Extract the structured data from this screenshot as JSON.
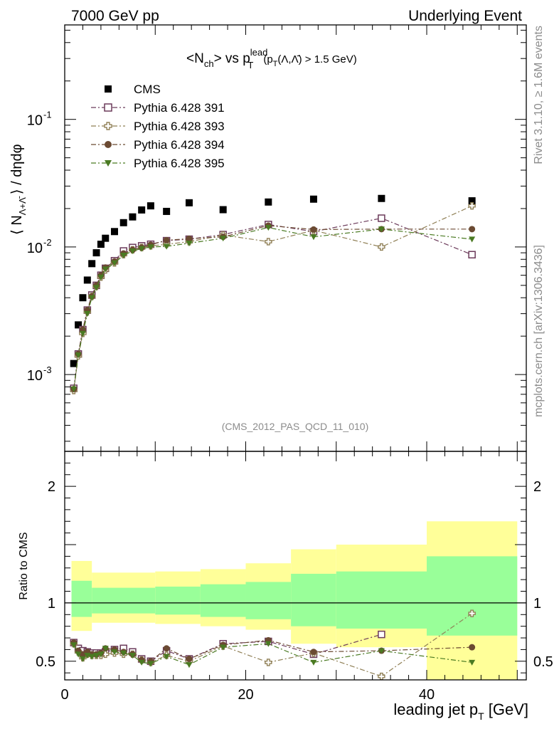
{
  "header": {
    "left": "7000 GeV pp",
    "right": "Underlying Event"
  },
  "side_labels": {
    "rivet": "Rivet 3.1.10, ≥ 1.6M events",
    "mcplots": "mcplots.cern.ch [arXiv:1306.3436]"
  },
  "chart_data": [
    {
      "type": "scatter",
      "title": "<N_ch> vs p_T^lead (p_T(Λ,Λ̄) > 1.5 GeV)",
      "title_parts": {
        "a": "<N",
        "a_sub": "ch",
        "b": "> vs p",
        "b_sup": "lead",
        "b_sub": "T",
        "c": "(p",
        "c_sub": "T",
        "d": "(Λ,Λ̄) > 1.5 GeV)"
      },
      "ylabel": "⟨ N_Λ+Λ̄ ⟩ / dηdφ",
      "ylabel_parts": {
        "open": "⟨ N",
        "sub": "Λ+Λ̄",
        "close": "⟩ / dηdφ"
      },
      "watermark": "(CMS_2012_PAS_QCD_11_010)",
      "yscale": "log",
      "xlim": [
        0,
        51
      ],
      "ylim": [
        0.00025,
        0.55
      ],
      "y_tick_labels": [
        "10",
        "10",
        "10"
      ],
      "y_tick_exponents": [
        "-3",
        "-2",
        "-1"
      ],
      "legend_position": "top-left",
      "series": [
        {
          "name": "CMS",
          "marker": "filled-square",
          "color": "#000000",
          "x": [
            1,
            1.5,
            2,
            2.5,
            3,
            3.5,
            4,
            4.5,
            5.5,
            6.5,
            7.5,
            8.5,
            9.5,
            11.25,
            13.75,
            17.5,
            22.5,
            27.5,
            35,
            45
          ],
          "y": [
            0.00122,
            0.00245,
            0.004,
            0.0055,
            0.0074,
            0.009,
            0.0105,
            0.0117,
            0.0132,
            0.0155,
            0.0172,
            0.0195,
            0.021,
            0.019,
            0.0222,
            0.0196,
            0.0225,
            0.0237,
            0.024,
            0.023
          ]
        },
        {
          "name": "Pythia 6.428 391",
          "marker": "open-square",
          "color": "#6b3a5a",
          "x": [
            1,
            1.5,
            2,
            2.5,
            3,
            3.5,
            4,
            4.5,
            5.5,
            6.5,
            7.5,
            8.5,
            9.5,
            11.25,
            13.75,
            17.5,
            22.5,
            27.5,
            35,
            45
          ],
          "y": [
            0.00078,
            0.00145,
            0.00225,
            0.0032,
            0.0042,
            0.005,
            0.006,
            0.0068,
            0.0078,
            0.0093,
            0.0099,
            0.0102,
            0.0105,
            0.0112,
            0.0115,
            0.0125,
            0.015,
            0.0132,
            0.0168,
            0.0087
          ]
        },
        {
          "name": "Pythia 6.428 393",
          "marker": "open-cross",
          "color": "#8f7f55",
          "x": [
            1,
            1.5,
            2,
            2.5,
            3,
            3.5,
            4,
            4.5,
            5.5,
            6.5,
            7.5,
            8.5,
            9.5,
            11.25,
            13.75,
            17.5,
            22.5,
            27.5,
            35,
            45
          ],
          "y": [
            0.00075,
            0.0014,
            0.0021,
            0.0031,
            0.0041,
            0.0049,
            0.0058,
            0.0066,
            0.0075,
            0.0087,
            0.0095,
            0.0099,
            0.0102,
            0.0105,
            0.011,
            0.0124,
            0.011,
            0.0135,
            0.01,
            0.021
          ]
        },
        {
          "name": "Pythia 6.428 394",
          "marker": "filled-circle",
          "color": "#6b4a32",
          "x": [
            1,
            1.5,
            2,
            2.5,
            3,
            3.5,
            4,
            4.5,
            5.5,
            6.5,
            7.5,
            8.5,
            9.5,
            11.25,
            13.75,
            17.5,
            22.5,
            27.5,
            35,
            45
          ],
          "y": [
            0.00077,
            0.00145,
            0.00225,
            0.0032,
            0.0041,
            0.005,
            0.006,
            0.0069,
            0.0077,
            0.0089,
            0.0095,
            0.0099,
            0.0104,
            0.0113,
            0.0116,
            0.012,
            0.0147,
            0.0137,
            0.0138,
            0.0138
          ]
        },
        {
          "name": "Pythia 6.428 395",
          "marker": "filled-triangle-down",
          "color": "#4a7a22",
          "x": [
            1,
            1.5,
            2,
            2.5,
            3,
            3.5,
            4,
            4.5,
            5.5,
            6.5,
            7.5,
            8.5,
            9.5,
            11.25,
            13.75,
            17.5,
            22.5,
            27.5,
            35,
            45
          ],
          "y": [
            0.00077,
            0.00142,
            0.0021,
            0.003,
            0.004,
            0.0048,
            0.0058,
            0.0067,
            0.0075,
            0.0086,
            0.0093,
            0.0097,
            0.01,
            0.0101,
            0.0107,
            0.0117,
            0.0142,
            0.012,
            0.0138,
            0.0115
          ]
        }
      ]
    },
    {
      "type": "scatter",
      "ylabel": "Ratio to CMS",
      "xlabel": "leading jet p_T [GeV]",
      "xlabel_parts": {
        "a": "leading jet p",
        "sub": "T",
        "b": " [GeV]"
      },
      "xlim": [
        0,
        51
      ],
      "ylim": [
        0.34,
        2.3
      ],
      "x_ticks": [
        0,
        20,
        40
      ],
      "x_tick_labels": [
        "0",
        "20",
        "40"
      ],
      "y_ticks": [
        0.5,
        1,
        2
      ],
      "y_tick_labels": [
        "0.5",
        "1",
        "2"
      ],
      "reference_line": 1,
      "bands": [
        {
          "x0": 0.75,
          "x1": 3,
          "green": [
            0.88,
            1.19
          ],
          "yellow": [
            0.76,
            1.36
          ]
        },
        {
          "x0": 3,
          "x1": 10,
          "green": [
            0.91,
            1.13
          ],
          "yellow": [
            0.83,
            1.26
          ]
        },
        {
          "x0": 10,
          "x1": 15,
          "green": [
            0.9,
            1.14
          ],
          "yellow": [
            0.82,
            1.27
          ]
        },
        {
          "x0": 15,
          "x1": 20,
          "green": [
            0.88,
            1.16
          ],
          "yellow": [
            0.8,
            1.29
          ]
        },
        {
          "x0": 20,
          "x1": 25,
          "green": [
            0.86,
            1.18
          ],
          "yellow": [
            0.77,
            1.34
          ]
        },
        {
          "x0": 25,
          "x1": 30,
          "green": [
            0.8,
            1.25
          ],
          "yellow": [
            0.65,
            1.46
          ]
        },
        {
          "x0": 30,
          "x1": 40,
          "green": [
            0.78,
            1.27
          ],
          "yellow": [
            0.62,
            1.5
          ]
        },
        {
          "x0": 40,
          "x1": 50,
          "green": [
            0.72,
            1.4
          ],
          "yellow": [
            0.34,
            1.7
          ]
        }
      ],
      "series": [
        {
          "name": "Pythia 6.428 391",
          "marker": "open-square",
          "color": "#6b3a5a",
          "x": [
            1,
            1.5,
            2,
            2.5,
            3,
            3.5,
            4,
            4.5,
            5.5,
            6.5,
            7.5,
            8.5,
            9.5,
            11.25,
            13.75,
            17.5,
            22.5,
            27.5,
            35
          ],
          "y": [
            0.66,
            0.61,
            0.59,
            0.58,
            0.57,
            0.57,
            0.57,
            0.58,
            0.6,
            0.61,
            0.58,
            0.52,
            0.5,
            0.59,
            0.52,
            0.65,
            0.67,
            0.56,
            0.73
          ]
        },
        {
          "name": "Pythia 6.428 393",
          "marker": "open-cross",
          "color": "#8f7f55",
          "x": [
            1,
            1.5,
            2,
            2.5,
            3,
            3.5,
            4,
            4.5,
            5.5,
            6.5,
            7.5,
            8.5,
            9.5,
            11.25,
            13.75,
            17.5,
            22.5,
            27.5,
            35,
            45
          ],
          "y": [
            0.65,
            0.58,
            0.53,
            0.56,
            0.55,
            0.55,
            0.55,
            0.56,
            0.57,
            0.56,
            0.56,
            0.51,
            0.49,
            0.55,
            0.5,
            0.63,
            0.49,
            0.57,
            0.37,
            0.91
          ]
        },
        {
          "name": "Pythia 6.428 394",
          "marker": "filled-circle",
          "color": "#6b4a32",
          "x": [
            1,
            1.5,
            2,
            2.5,
            3,
            3.5,
            4,
            4.5,
            5.5,
            6.5,
            7.5,
            8.5,
            9.5,
            11.25,
            13.75,
            17.5,
            22.5,
            27.5,
            35,
            45
          ],
          "y": [
            0.66,
            0.59,
            0.56,
            0.58,
            0.56,
            0.56,
            0.57,
            0.61,
            0.6,
            0.58,
            0.56,
            0.51,
            0.5,
            0.61,
            0.52,
            0.64,
            0.68,
            0.58,
            0.59,
            0.62
          ]
        },
        {
          "name": "Pythia 6.428 395",
          "marker": "filled-triangle-down",
          "color": "#4a7a22",
          "x": [
            1,
            1.5,
            2,
            2.5,
            3,
            3.5,
            4,
            4.5,
            5.5,
            6.5,
            7.5,
            8.5,
            9.5,
            11.25,
            13.75,
            17.5,
            22.5,
            27.5,
            35,
            45
          ],
          "y": [
            0.64,
            0.56,
            0.52,
            0.55,
            0.54,
            0.55,
            0.56,
            0.61,
            0.58,
            0.57,
            0.55,
            0.49,
            0.48,
            0.54,
            0.47,
            0.62,
            0.65,
            0.49,
            0.59,
            0.49
          ]
        }
      ]
    }
  ]
}
